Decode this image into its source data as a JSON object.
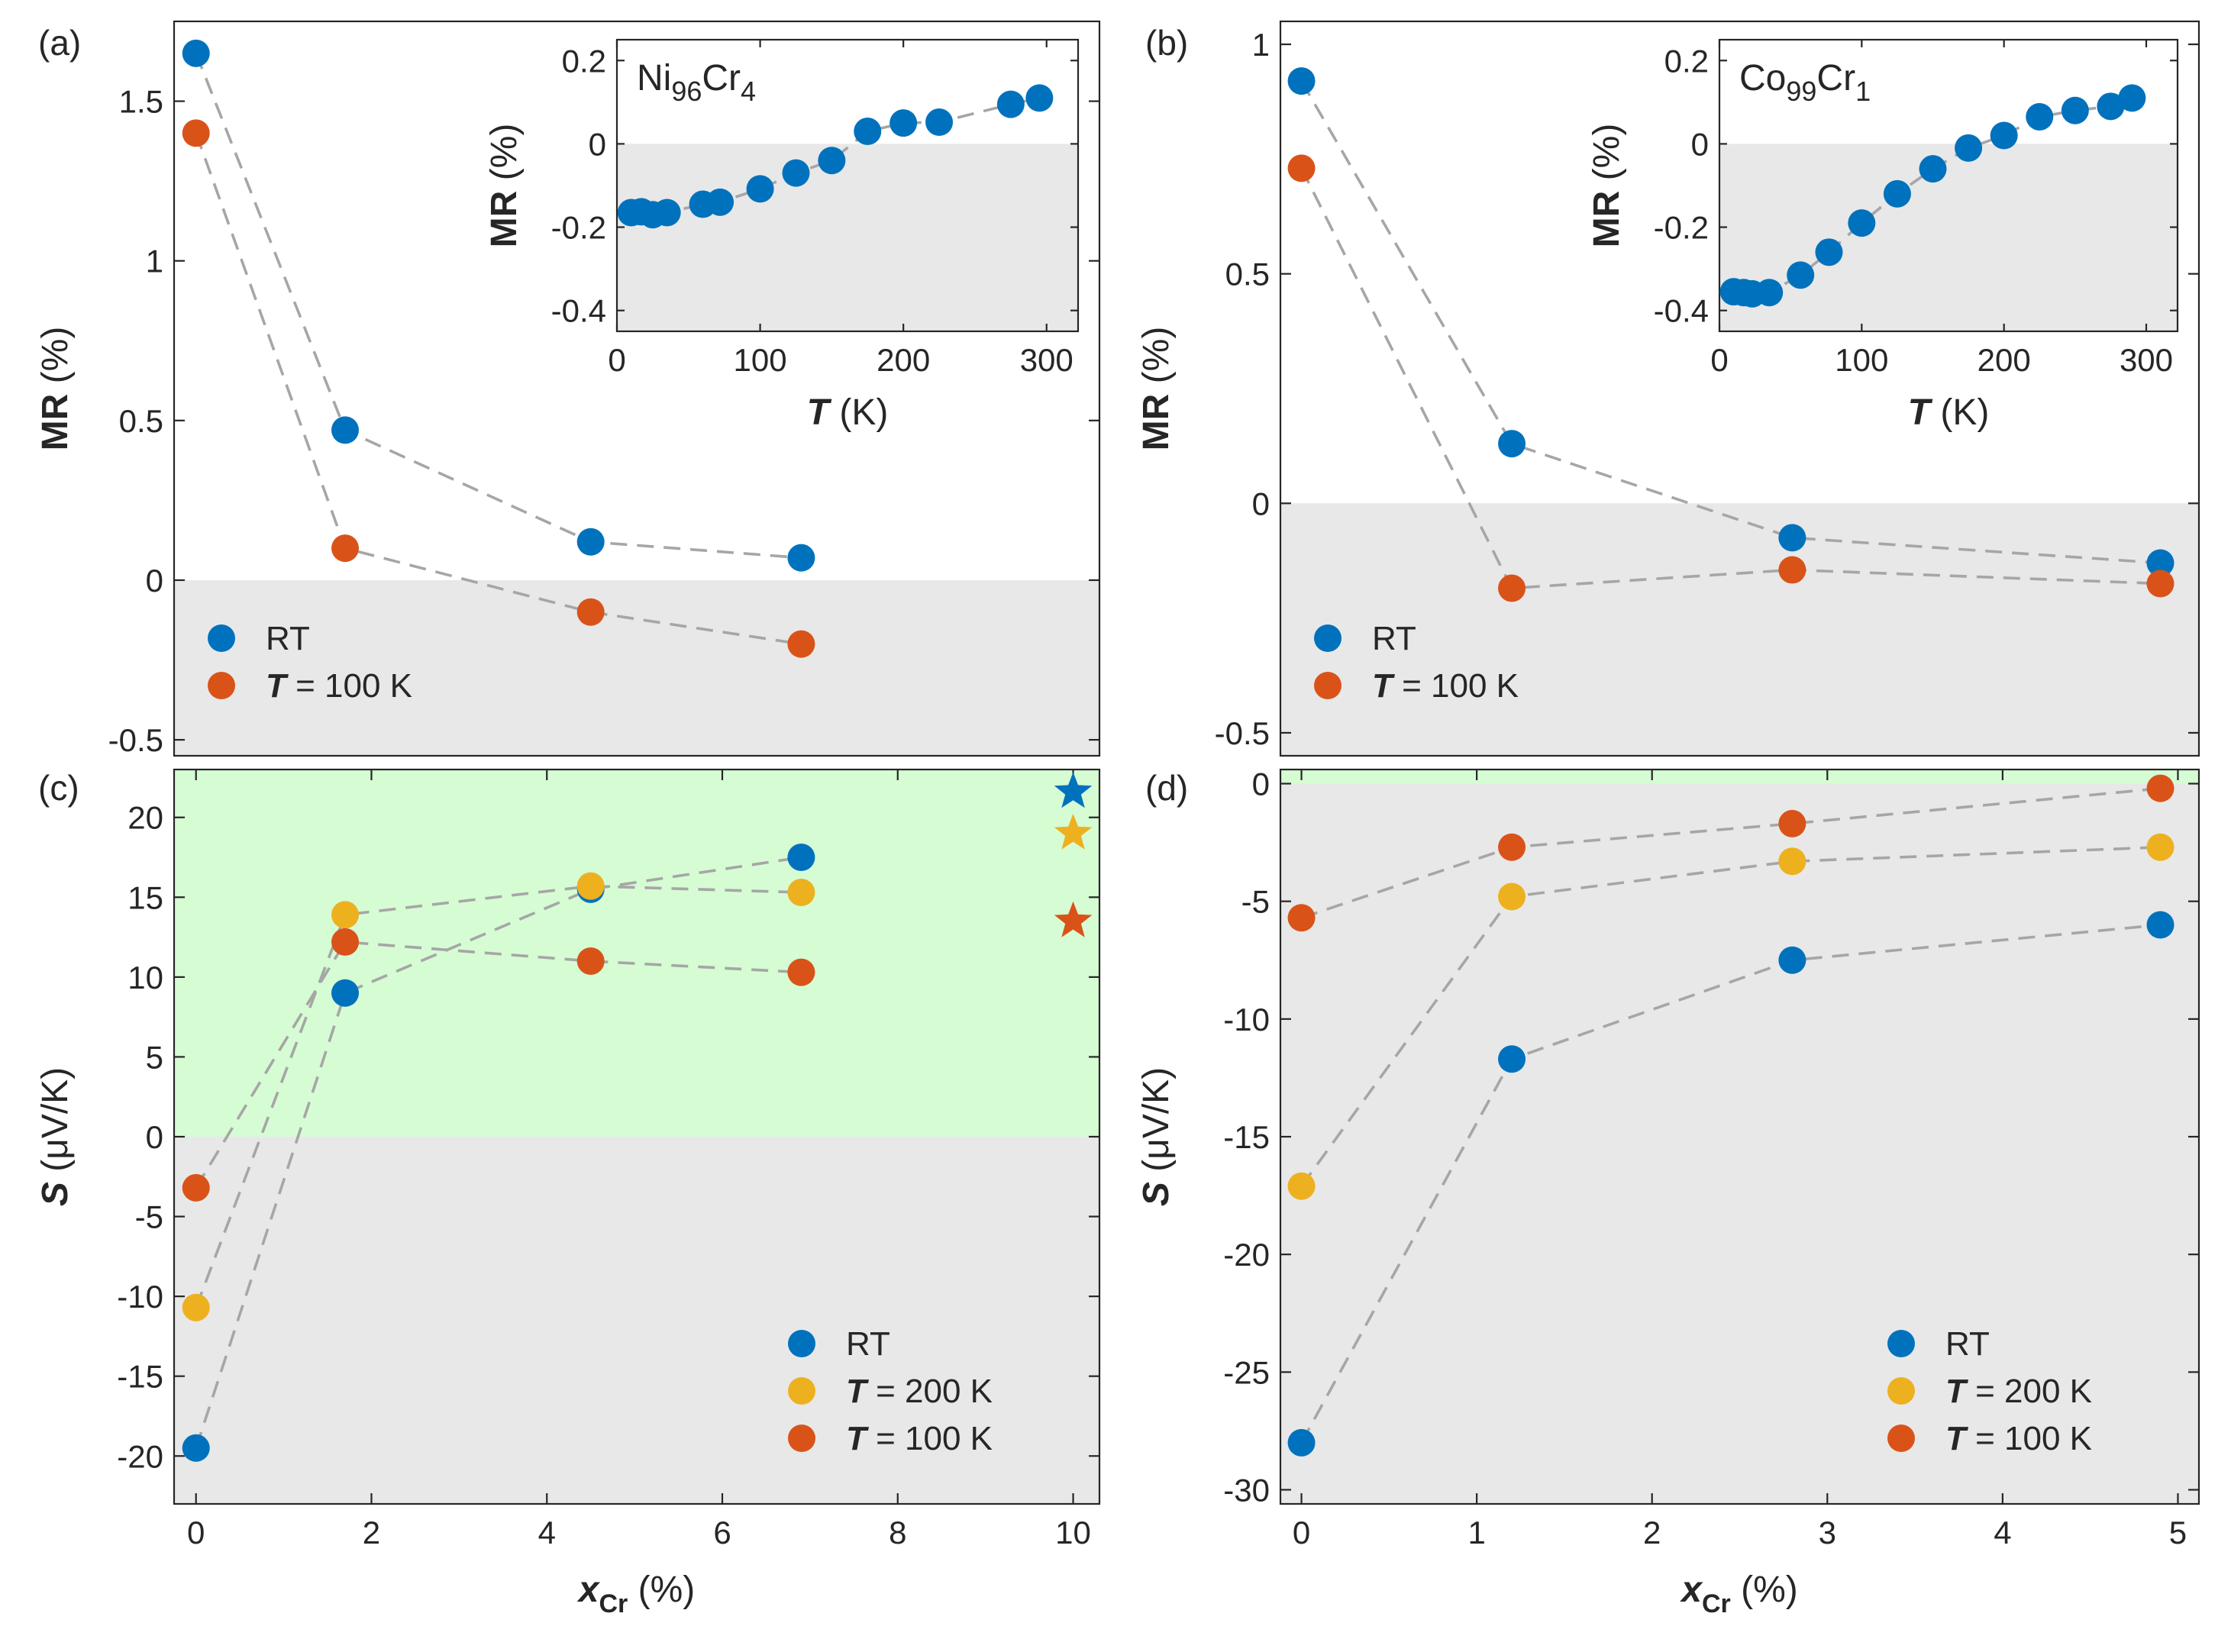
{
  "colors": {
    "RT": "#0072BD",
    "T = 200 K": "#EDB120",
    "T = 100 K": "#D95319",
    "negative_region": "#E8E8E8",
    "positive_region": "#D6FCD4",
    "connector": "#A6A6A6"
  },
  "chart_data": [
    {
      "id": "a",
      "type": "scatter",
      "panel_label": "(a)",
      "xlabel": "",
      "ylabel": "MR (%)",
      "ylabel_bold": "MR",
      "ylabel_rest": " (%)",
      "xlim": [
        -0.25,
        10.3
      ],
      "ylim": [
        -0.55,
        1.75
      ],
      "xticks": [],
      "yticks": [
        -0.5,
        0,
        0.5,
        1,
        1.5
      ],
      "ytick_labels": [
        "-0.5",
        "0",
        "0.5",
        "1",
        "1.5"
      ],
      "shade": {
        "negative": true,
        "positive": false
      },
      "series": [
        {
          "name": "RT",
          "x": [
            0,
            1.7,
            4.5,
            6.9
          ],
          "y": [
            1.65,
            0.47,
            0.12,
            0.07
          ]
        },
        {
          "name": "T = 100 K",
          "x": [
            0,
            1.7,
            4.5,
            6.9
          ],
          "y": [
            1.4,
            0.1,
            -0.1,
            -0.2
          ]
        }
      ],
      "legend": {
        "loc": "lower-left",
        "entries": [
          {
            "series": "RT",
            "italic": "",
            "text": "RT"
          },
          {
            "series": "T = 100 K",
            "italic": "T",
            "text": " = 100 K"
          }
        ]
      },
      "inset": {
        "label_base": "Ni",
        "label_sub": "96",
        "label_base2": "Cr",
        "label_sub2": "4",
        "xlabel_italic": "T",
        "xlabel_rest": " (K)",
        "ylabel_bold": "MR",
        "ylabel_rest": " (%)",
        "xlim": [
          0,
          322
        ],
        "ylim": [
          -0.45,
          0.25
        ],
        "xticks": [
          0,
          100,
          200,
          300
        ],
        "xtick_labels": [
          "0",
          "100",
          "200",
          "300"
        ],
        "yticks": [
          -0.4,
          -0.2,
          0,
          0.2
        ],
        "ytick_labels": [
          "-0.4",
          "-0.2",
          "0",
          "0.2"
        ],
        "series": {
          "name": "RT",
          "x": [
            10,
            17,
            25,
            35,
            60,
            72,
            100,
            125,
            150,
            175,
            200,
            225,
            275,
            295
          ],
          "y": [
            -0.165,
            -0.163,
            -0.17,
            -0.165,
            -0.145,
            -0.14,
            -0.108,
            -0.07,
            -0.04,
            0.03,
            0.05,
            0.052,
            0.095,
            0.11
          ]
        }
      }
    },
    {
      "id": "b",
      "type": "scatter",
      "panel_label": "(b)",
      "xlabel": "",
      "ylabel": "MR (%)",
      "ylabel_bold": "MR",
      "ylabel_rest": " (%)",
      "xlim": [
        -0.12,
        5.12
      ],
      "ylim": [
        -0.55,
        1.05
      ],
      "xticks": [],
      "yticks": [
        -0.5,
        0,
        0.5,
        1
      ],
      "ytick_labels": [
        "-0.5",
        "0",
        "0.5",
        "1"
      ],
      "shade": {
        "negative": true,
        "positive": false
      },
      "series": [
        {
          "name": "RT",
          "x": [
            0,
            1.2,
            2.8,
            4.9
          ],
          "y": [
            0.92,
            0.13,
            -0.075,
            -0.13
          ]
        },
        {
          "name": "T = 100 K",
          "x": [
            0,
            1.2,
            2.8,
            4.9
          ],
          "y": [
            0.73,
            -0.185,
            -0.145,
            -0.175
          ]
        }
      ],
      "legend": {
        "loc": "lower-left",
        "entries": [
          {
            "series": "RT",
            "italic": "",
            "text": "RT"
          },
          {
            "series": "T = 100 K",
            "italic": "T",
            "text": " = 100 K"
          }
        ]
      },
      "inset": {
        "label_base": "Co",
        "label_sub": "99",
        "label_base2": "Cr",
        "label_sub2": "1",
        "xlabel_italic": "T",
        "xlabel_rest": " (K)",
        "ylabel_bold": "MR",
        "ylabel_rest": " (%)",
        "xlim": [
          0,
          322
        ],
        "ylim": [
          -0.45,
          0.25
        ],
        "xticks": [
          0,
          100,
          200,
          300
        ],
        "xtick_labels": [
          "0",
          "100",
          "200",
          "300"
        ],
        "yticks": [
          -0.4,
          -0.2,
          0,
          0.2
        ],
        "ytick_labels": [
          "-0.4",
          "-0.2",
          "0",
          "0.2"
        ],
        "series": {
          "name": "RT",
          "x": [
            10,
            17,
            23,
            35,
            57,
            77,
            100,
            125,
            150,
            175,
            200,
            225,
            250,
            275,
            290
          ],
          "y": [
            -0.355,
            -0.357,
            -0.36,
            -0.357,
            -0.315,
            -0.26,
            -0.19,
            -0.12,
            -0.06,
            -0.01,
            0.02,
            0.065,
            0.08,
            0.09,
            0.11
          ]
        }
      }
    },
    {
      "id": "c",
      "type": "scatter",
      "panel_label": "(c)",
      "xlabel": "x_Cr (%)",
      "xlabel_italic": "x",
      "xlabel_sub": "Cr",
      "xlabel_rest": " (%)",
      "ylabel": "S (μV/K)",
      "ylabel_bold": "S",
      "ylabel_rest": " (μV/K)",
      "xlim": [
        -0.25,
        10.3
      ],
      "ylim": [
        -23,
        23
      ],
      "xticks": [
        0,
        2,
        4,
        6,
        8,
        10
      ],
      "xtick_labels": [
        "0",
        "2",
        "4",
        "6",
        "8",
        "10"
      ],
      "yticks": [
        -20,
        -15,
        -10,
        -5,
        0,
        5,
        10,
        15,
        20
      ],
      "ytick_labels": [
        "-20",
        "-15",
        "-10",
        "-5",
        "0",
        "5",
        "10",
        "15",
        "20"
      ],
      "shade": {
        "negative": true,
        "positive": true
      },
      "series": [
        {
          "name": "RT",
          "x": [
            0,
            1.7,
            4.5,
            6.9
          ],
          "y": [
            -19.5,
            9,
            15.5,
            17.5
          ]
        },
        {
          "name": "T = 200 K",
          "x": [
            0,
            1.7,
            4.5,
            6.9
          ],
          "y": [
            -10.7,
            13.9,
            15.7,
            15.3
          ]
        },
        {
          "name": "T = 100 K",
          "x": [
            0,
            1.7,
            4.5,
            6.9
          ],
          "y": [
            -3.2,
            12.2,
            11,
            10.3
          ]
        }
      ],
      "stars": [
        {
          "series": "RT",
          "x": 10,
          "y": 21.6
        },
        {
          "series": "T = 200 K",
          "x": 10,
          "y": 19
        },
        {
          "series": "T = 100 K",
          "x": 10,
          "y": 13.5
        }
      ],
      "legend": {
        "loc": "lower-right",
        "entries": [
          {
            "series": "RT",
            "italic": "",
            "text": "RT"
          },
          {
            "series": "T = 200 K",
            "italic": "T",
            "text": " = 200 K"
          },
          {
            "series": "T = 100 K",
            "italic": "T",
            "text": " = 100 K"
          }
        ]
      }
    },
    {
      "id": "d",
      "type": "scatter",
      "panel_label": "(d)",
      "xlabel": "x_Cr (%)",
      "xlabel_italic": "x",
      "xlabel_sub": "Cr",
      "xlabel_rest": " (%)",
      "ylabel": "S (μV/K)",
      "ylabel_bold": "S",
      "ylabel_rest": " (μV/K)",
      "xlim": [
        -0.12,
        5.12
      ],
      "ylim": [
        -30.6,
        0.6
      ],
      "xticks": [
        0,
        1,
        2,
        3,
        4,
        5
      ],
      "xtick_labels": [
        "0",
        "1",
        "2",
        "3",
        "4",
        "5"
      ],
      "yticks": [
        -30,
        -25,
        -20,
        -15,
        -10,
        -5,
        0
      ],
      "ytick_labels": [
        "-30",
        "-25",
        "-20",
        "-15",
        "-10",
        "-5",
        "0"
      ],
      "shade": {
        "negative": true,
        "positive": true
      },
      "series": [
        {
          "name": "RT",
          "x": [
            0,
            1.2,
            2.8,
            4.9
          ],
          "y": [
            -28,
            -11.7,
            -7.5,
            -6
          ]
        },
        {
          "name": "T = 200 K",
          "x": [
            0,
            1.2,
            2.8,
            4.9
          ],
          "y": [
            -17.1,
            -4.8,
            -3.3,
            -2.7
          ]
        },
        {
          "name": "T = 100 K",
          "x": [
            0,
            1.2,
            2.8,
            4.9
          ],
          "y": [
            -5.7,
            -2.7,
            -1.7,
            -0.2
          ]
        }
      ],
      "legend": {
        "loc": "lower-right",
        "entries": [
          {
            "series": "RT",
            "italic": "",
            "text": "RT"
          },
          {
            "series": "T = 200 K",
            "italic": "T",
            "text": " = 200 K"
          },
          {
            "series": "T = 100 K",
            "italic": "T",
            "text": " = 100 K"
          }
        ]
      }
    }
  ]
}
